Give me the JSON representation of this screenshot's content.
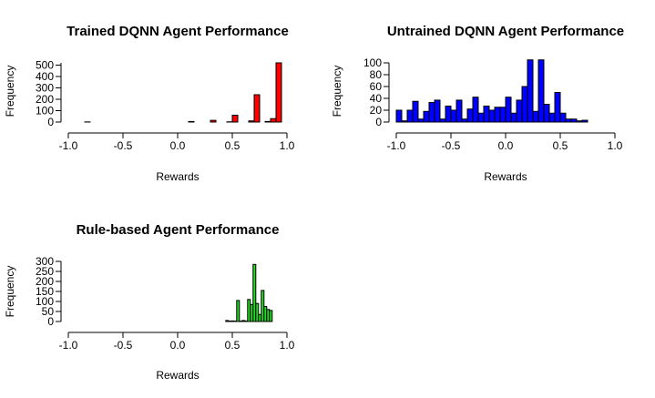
{
  "chart_data": [
    {
      "type": "bar",
      "title": "Trained DQNN Agent Performance",
      "xlabel": "Rewards",
      "ylabel": "Frequency",
      "bar_color": "#ff0000",
      "xlim": [
        -1.0,
        1.0
      ],
      "ylim": [
        0,
        520
      ],
      "x_ticks": [
        -1.0,
        -0.5,
        0.0,
        0.5,
        1.0
      ],
      "x_tick_labels": [
        "-1.0",
        "-0.5",
        "0.0",
        "0.5",
        "1.0"
      ],
      "y_ticks": [
        0,
        100,
        200,
        300,
        400,
        500
      ],
      "y_tick_labels": [
        "0",
        "100",
        "200",
        "300",
        "400",
        "500"
      ],
      "bin_edges": [
        -0.85,
        -0.8,
        -0.75,
        -0.7,
        -0.65,
        -0.6,
        -0.55,
        -0.5,
        -0.45,
        -0.4,
        -0.35,
        -0.3,
        -0.25,
        -0.2,
        -0.15,
        -0.1,
        -0.05,
        0.0,
        0.05,
        0.1,
        0.15,
        0.2,
        0.25,
        0.3,
        0.35,
        0.4,
        0.45,
        0.5,
        0.55,
        0.6,
        0.65,
        0.7,
        0.75,
        0.8,
        0.85,
        0.9,
        0.95
      ],
      "values": [
        1,
        0,
        0,
        0,
        0,
        0,
        0,
        0,
        0,
        0,
        0,
        0,
        0,
        0,
        0,
        0,
        0,
        0,
        0,
        5,
        0,
        0,
        0,
        15,
        0,
        0,
        2,
        60,
        0,
        0,
        10,
        240,
        0,
        5,
        30,
        520
      ]
    },
    {
      "type": "bar",
      "title": "Untrained DQNN Agent Performance",
      "xlabel": "Rewards",
      "ylabel": "Frequency",
      "bar_color": "#0000ff",
      "xlim": [
        -1.0,
        1.0
      ],
      "ylim": [
        0,
        100
      ],
      "x_ticks": [
        -1.0,
        -0.5,
        0.0,
        0.5,
        1.0
      ],
      "x_tick_labels": [
        "-1.0",
        "-0.5",
        "0.0",
        "0.5",
        "1.0"
      ],
      "y_ticks": [
        0,
        20,
        40,
        60,
        80,
        100
      ],
      "y_tick_labels": [
        "0",
        "20",
        "40",
        "60",
        "80",
        "100"
      ],
      "bin_edges": [
        -1.0,
        -0.95,
        -0.9,
        -0.85,
        -0.8,
        -0.75,
        -0.7,
        -0.65,
        -0.6,
        -0.55,
        -0.5,
        -0.45,
        -0.4,
        -0.35,
        -0.3,
        -0.25,
        -0.2,
        -0.15,
        -0.1,
        -0.05,
        0.0,
        0.05,
        0.1,
        0.15,
        0.2,
        0.25,
        0.3,
        0.35,
        0.4,
        0.45,
        0.5,
        0.55,
        0.6,
        0.65,
        0.7,
        0.75
      ],
      "values": [
        20,
        2,
        20,
        35,
        5,
        18,
        33,
        37,
        5,
        27,
        20,
        37,
        5,
        22,
        42,
        15,
        27,
        20,
        25,
        25,
        42,
        15,
        37,
        60,
        105,
        18,
        105,
        30,
        15,
        50,
        15,
        5,
        5,
        2,
        3
      ]
    },
    {
      "type": "bar",
      "title": "Rule-based Agent Performance",
      "xlabel": "Rewards",
      "ylabel": "Frequency",
      "bar_color": "#22dd22",
      "xlim": [
        -1.0,
        1.0
      ],
      "ylim": [
        0,
        300
      ],
      "x_ticks": [
        -1.0,
        -0.5,
        0.0,
        0.5,
        1.0
      ],
      "x_tick_labels": [
        "-1.0",
        "-0.5",
        "0.0",
        "0.5",
        "1.0"
      ],
      "y_ticks": [
        0,
        50,
        100,
        150,
        200,
        250,
        300
      ],
      "y_tick_labels": [
        "0",
        "50",
        "100",
        "150",
        "200",
        "250",
        "300"
      ],
      "bin_edges": [
        0.44,
        0.465,
        0.49,
        0.515,
        0.54,
        0.565,
        0.59,
        0.615,
        0.64,
        0.665,
        0.69,
        0.715,
        0.74,
        0.765,
        0.79,
        0.815,
        0.84,
        0.865,
        0.89
      ],
      "values": [
        5,
        2,
        3,
        2,
        105,
        2,
        5,
        2,
        110,
        85,
        285,
        90,
        35,
        155,
        75,
        60,
        55,
        0
      ]
    }
  ]
}
